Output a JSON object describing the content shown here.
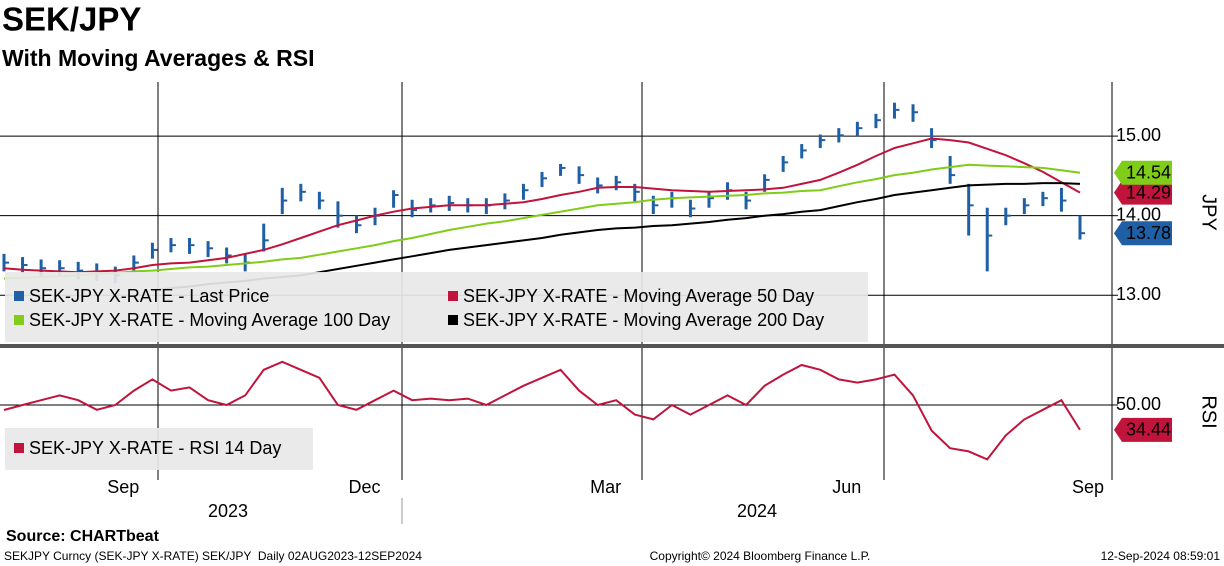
{
  "title": "SEK/JPY",
  "subtitle": "With Moving Averages & RSI",
  "chart_data": [
    {
      "type": "ohlc",
      "legend": "lower left",
      "y_label": "JPY",
      "ylim": [
        12.4,
        15.68
      ],
      "yticks": [
        {
          "value": 13,
          "label": "13.00"
        },
        {
          "value": 14,
          "label": "14.00"
        },
        {
          "value": 15,
          "label": "15.00"
        }
      ],
      "grid": true,
      "series": [
        {
          "name": "SEK-JPY X-RATE - Last Price",
          "color": "#1f5fa5",
          "tag": true,
          "high": [
            13.52,
            13.48,
            13.45,
            13.44,
            13.42,
            13.4,
            13.36,
            13.5,
            13.66,
            13.72,
            13.72,
            13.68,
            13.6,
            13.52,
            13.9,
            14.35,
            14.4,
            14.3,
            14.18,
            14.0,
            14.1,
            14.32,
            14.2,
            14.22,
            14.25,
            14.22,
            14.22,
            14.28,
            14.4,
            14.55,
            14.65,
            14.62,
            14.48,
            14.5,
            14.4,
            14.25,
            14.3,
            14.2,
            14.3,
            14.42,
            14.3,
            14.52,
            14.75,
            14.9,
            15.02,
            15.1,
            15.18,
            15.28,
            15.42,
            15.4,
            15.1,
            14.75,
            14.4,
            14.1,
            14.1,
            14.22,
            14.3,
            14.35,
            14.0
          ],
          "low": [
            13.3,
            13.28,
            13.24,
            13.24,
            13.2,
            13.18,
            13.15,
            13.28,
            13.46,
            13.54,
            13.52,
            13.48,
            13.4,
            13.3,
            13.55,
            14.02,
            14.18,
            14.08,
            13.85,
            13.78,
            13.88,
            14.1,
            13.98,
            14.04,
            14.06,
            14.04,
            14.02,
            14.08,
            14.2,
            14.36,
            14.5,
            14.4,
            14.28,
            14.32,
            14.18,
            14.02,
            14.1,
            13.98,
            14.1,
            14.2,
            14.08,
            14.3,
            14.55,
            14.72,
            14.85,
            14.92,
            15.0,
            15.1,
            15.22,
            15.18,
            14.85,
            14.4,
            13.75,
            13.3,
            13.88,
            14.02,
            14.12,
            14.05,
            13.7
          ],
          "close": [
            13.41,
            13.38,
            13.34,
            13.34,
            13.31,
            13.29,
            13.25,
            13.41,
            13.57,
            13.63,
            13.63,
            13.59,
            13.5,
            13.41,
            13.69,
            14.19,
            14.3,
            14.19,
            14.0,
            13.88,
            14.0,
            14.26,
            14.07,
            14.13,
            14.16,
            14.13,
            14.13,
            14.19,
            14.32,
            14.47,
            14.6,
            14.51,
            14.38,
            14.42,
            14.3,
            14.13,
            14.22,
            14.09,
            14.22,
            14.32,
            14.19,
            14.45,
            14.67,
            14.82,
            14.95,
            15.01,
            15.1,
            15.2,
            15.33,
            15.3,
            14.95,
            14.51,
            14.13,
            13.75,
            14.0,
            14.13,
            14.22,
            14.19,
            13.78
          ]
        },
        {
          "name": "SEK-JPY X-RATE - Moving Average 50 Day",
          "color": "#c0143c",
          "tag": true,
          "tag_text": "#ffffff",
          "values": [
            13.34,
            13.32,
            13.31,
            13.3,
            13.29,
            13.3,
            13.31,
            13.34,
            13.38,
            13.4,
            13.41,
            13.44,
            13.47,
            13.52,
            13.57,
            13.64,
            13.72,
            13.8,
            13.88,
            13.94,
            14.0,
            14.05,
            14.09,
            14.11,
            14.13,
            14.13,
            14.13,
            14.15,
            14.17,
            14.21,
            14.26,
            14.3,
            14.35,
            14.36,
            14.36,
            14.34,
            14.32,
            14.31,
            14.3,
            14.31,
            14.32,
            14.33,
            14.35,
            14.4,
            14.45,
            14.54,
            14.64,
            14.75,
            14.85,
            14.91,
            14.97,
            14.95,
            14.92,
            14.84,
            14.76,
            14.66,
            14.55,
            14.42,
            14.29
          ]
        },
        {
          "name": "SEK-JPY X-RATE - Moving Average 100 Day",
          "color": "#7fcc19",
          "tag": true,
          "tag_text": "#000000",
          "values": [
            13.21,
            13.22,
            13.23,
            13.24,
            13.25,
            13.27,
            13.28,
            13.3,
            13.31,
            13.33,
            13.35,
            13.36,
            13.38,
            13.4,
            13.42,
            13.45,
            13.47,
            13.51,
            13.55,
            13.59,
            13.63,
            13.68,
            13.72,
            13.77,
            13.82,
            13.86,
            13.9,
            13.93,
            13.97,
            14.01,
            14.05,
            14.09,
            14.13,
            14.15,
            14.17,
            14.2,
            14.22,
            14.23,
            14.24,
            14.25,
            14.26,
            14.28,
            14.29,
            14.31,
            14.32,
            14.37,
            14.42,
            14.46,
            14.51,
            14.54,
            14.58,
            14.61,
            14.64,
            14.63,
            14.62,
            14.61,
            14.6,
            14.57,
            14.54
          ]
        },
        {
          "name": "SEK-JPY X-RATE - Moving Average 200 Day",
          "color": "#000000",
          "values": [
            null,
            null,
            null,
            null,
            null,
            null,
            null,
            null,
            13.06,
            13.09,
            13.11,
            13.14,
            13.16,
            13.18,
            13.21,
            13.23,
            13.25,
            13.29,
            13.33,
            13.37,
            13.41,
            13.45,
            13.49,
            13.53,
            13.57,
            13.6,
            13.63,
            13.66,
            13.69,
            13.72,
            13.76,
            13.79,
            13.82,
            13.84,
            13.85,
            13.87,
            13.88,
            13.9,
            13.92,
            13.95,
            13.97,
            14.0,
            14.02,
            14.05,
            14.07,
            14.12,
            14.17,
            14.21,
            14.26,
            14.29,
            14.32,
            14.35,
            14.38,
            14.39,
            14.4,
            14.4,
            14.41,
            14.41,
            14.4
          ]
        }
      ]
    },
    {
      "type": "line",
      "legend": "lower left",
      "y_label": "RSI",
      "ylim": [
        0,
        85
      ],
      "yticks": [
        {
          "value": 50,
          "label": "50.00"
        }
      ],
      "grid": true,
      "categories": [
        null,
        null,
        null,
        null,
        null,
        null,
        "Sep",
        null,
        null,
        null,
        null,
        null,
        null,
        null,
        null,
        null,
        null,
        null,
        null,
        "Dec",
        null,
        null,
        null,
        null,
        null,
        null,
        null,
        null,
        null,
        null,
        null,
        null,
        "Mar",
        null,
        null,
        null,
        null,
        null,
        null,
        null,
        null,
        null,
        null,
        null,
        null,
        "Jun",
        null,
        null,
        null,
        null,
        null,
        null,
        null,
        null,
        null,
        null,
        null,
        null,
        "Sep"
      ],
      "x_groups": [
        "2023",
        "2024"
      ],
      "series": [
        {
          "name": "SEK-JPY X-RATE - RSI 14 Day",
          "color": "#c0143c",
          "tag": true,
          "tag_text": "#ffffff",
          "values": [
            46.9,
            50,
            53,
            56,
            53,
            47,
            50,
            59,
            66,
            59,
            61,
            53,
            50,
            56,
            72,
            77,
            72,
            67,
            50,
            47,
            53,
            59,
            53,
            54,
            53,
            54,
            50,
            56,
            62,
            67,
            72,
            59,
            50,
            53,
            44,
            41,
            50,
            44,
            50,
            56,
            50,
            62,
            69,
            75,
            72,
            66,
            64,
            66,
            69,
            56,
            34,
            23,
            21,
            16,
            31,
            41,
            47,
            53,
            34.44
          ]
        }
      ]
    }
  ],
  "footer": {
    "source": "Source: CHARTbeat",
    "left": "SEKJPY Curncy (SEK-JPY X-RATE) SEK/JPY  Daily 02AUG2023-12SEP2024",
    "center": "Copyright© 2024 Bloomberg Finance L.P.",
    "right": "12-Sep-2024 08:59:01"
  }
}
